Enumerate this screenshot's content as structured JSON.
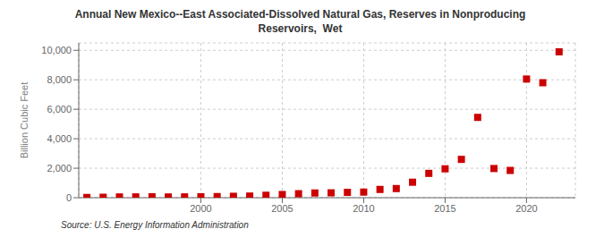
{
  "chart_data": {
    "type": "scatter",
    "title": "Annual New Mexico--East Associated-Dissolved Natural Gas, Reserves in Nonproducing\nReservoirs,  Wet",
    "ylabel": "Billion Cubic Feet",
    "source": "Source: U.S. Energy Information Administration",
    "color": "#cc0000",
    "marker": "square",
    "grid": true,
    "xlim": [
      1992.5,
      2023
    ],
    "ylim": [
      0,
      10500
    ],
    "xticks": [
      2000,
      2005,
      2010,
      2015,
      2020
    ],
    "yticks": [
      0,
      {
        "value": 2000,
        "label": "2,000"
      },
      {
        "value": 4000,
        "label": "4,000"
      },
      {
        "value": 6000,
        "label": "6,000"
      },
      {
        "value": 8000,
        "label": "8,000"
      },
      {
        "value": 10000,
        "label": "10,000"
      }
    ],
    "x": [
      1993,
      1994,
      1995,
      1996,
      1997,
      1998,
      1999,
      2000,
      2001,
      2002,
      2003,
      2004,
      2005,
      2006,
      2007,
      2008,
      2009,
      2010,
      2011,
      2012,
      2013,
      2014,
      2015,
      2016,
      2017,
      2018,
      2019,
      2020,
      2021,
      2022
    ],
    "values": [
      15,
      30,
      50,
      55,
      60,
      50,
      55,
      65,
      75,
      95,
      110,
      165,
      215,
      270,
      320,
      330,
      360,
      380,
      560,
      620,
      1050,
      1650,
      1960,
      2600,
      5450,
      1980,
      1850,
      8050,
      7800,
      9900
    ]
  }
}
